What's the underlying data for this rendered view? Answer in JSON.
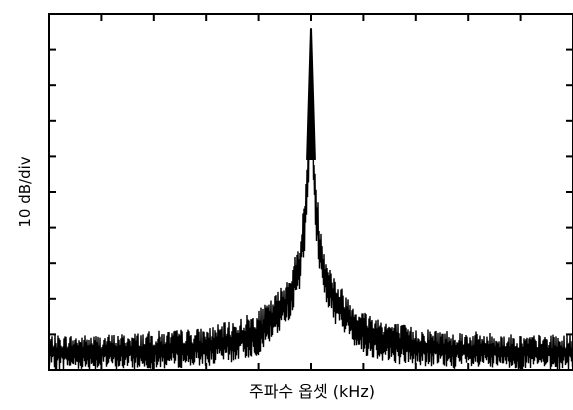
{
  "chart_data": {
    "type": "line",
    "title": "",
    "xlabel": "주파수 옵셋 (kHz)",
    "ylabel": "10 dB/div",
    "x_tick_labels": [],
    "y_tick_labels": [],
    "grid": false,
    "legend": "none",
    "xlim": [
      -1,
      1
    ],
    "ylim": [
      0,
      10
    ],
    "series": [
      {
        "name": "",
        "color": "#000000",
        "envelope": {
          "x": [
            -1.0,
            -0.8,
            -0.6,
            -0.4,
            -0.3,
            -0.2,
            -0.15,
            -0.1,
            -0.07,
            -0.05,
            -0.03,
            -0.02,
            -0.01,
            0.0,
            0.01,
            0.02,
            0.03,
            0.05,
            0.07,
            0.1,
            0.15,
            0.2,
            0.3,
            0.4,
            0.6,
            0.8,
            1.0
          ],
          "upper": [
            1.0,
            1.0,
            1.1,
            1.2,
            1.4,
            1.7,
            2.0,
            2.5,
            3.0,
            3.5,
            4.5,
            5.3,
            6.5,
            9.6,
            6.5,
            5.3,
            4.5,
            3.5,
            3.0,
            2.5,
            2.0,
            1.7,
            1.4,
            1.2,
            1.1,
            1.0,
            1.0
          ],
          "lower": [
            0.0,
            0.0,
            0.0,
            0.1,
            0.2,
            0.4,
            0.8,
            1.2,
            1.6,
            2.0,
            2.8,
            3.6,
            5.0,
            7.0,
            5.0,
            3.6,
            2.8,
            2.0,
            1.6,
            1.2,
            0.8,
            0.4,
            0.2,
            0.1,
            0.0,
            0.0,
            0.0
          ]
        }
      }
    ]
  }
}
